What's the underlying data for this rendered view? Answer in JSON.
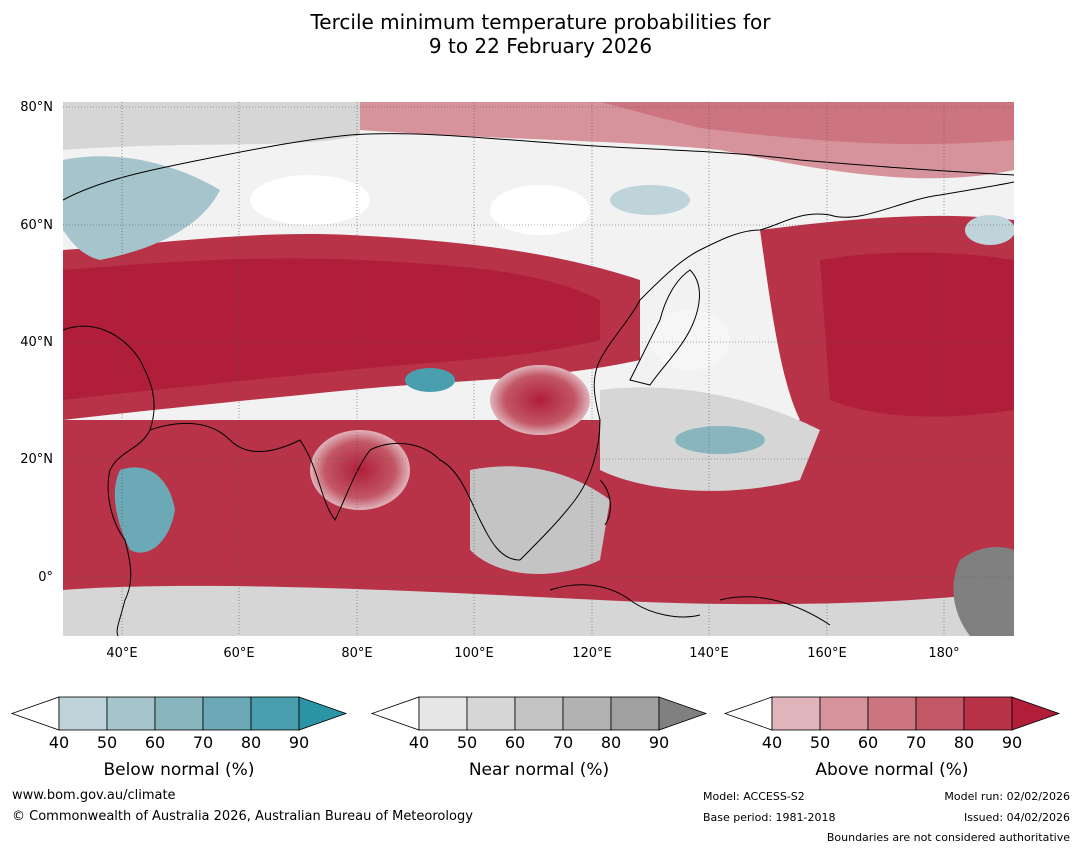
{
  "title": {
    "line1": "Tercile minimum temperature probabilities for",
    "line2": "9 to 22 February 2026"
  },
  "map": {
    "lat_labels": [
      "80°N",
      "60°N",
      "40°N",
      "20°N",
      "0°"
    ],
    "lon_labels": [
      "40°E",
      "60°E",
      "80°E",
      "100°E",
      "120°E",
      "140°E",
      "160°E",
      "180°"
    ],
    "extent": {
      "lon": [
        30,
        192
      ],
      "lat": [
        -10,
        81
      ]
    }
  },
  "legends": [
    {
      "id": "below",
      "title": "Below normal (%)",
      "ticks": [
        "40",
        "50",
        "60",
        "70",
        "80",
        "90"
      ],
      "colors": [
        "#ffffff",
        "#bfd3da",
        "#a5c4cb",
        "#89b6be",
        "#6aa9b5",
        "#4a9fae",
        "#2b94a6"
      ]
    },
    {
      "id": "near",
      "title": "Near normal (%)",
      "ticks": [
        "40",
        "50",
        "60",
        "70",
        "80",
        "90"
      ],
      "colors": [
        "#ffffff",
        "#e6e6e6",
        "#d6d6d6",
        "#c4c4c4",
        "#b2b2b2",
        "#a0a0a0",
        "#808080"
      ]
    },
    {
      "id": "above",
      "title": "Above normal (%)",
      "ticks": [
        "40",
        "50",
        "60",
        "70",
        "80",
        "90"
      ],
      "colors": [
        "#ffffff",
        "#e0b4bb",
        "#d6939c",
        "#cc7580",
        "#c25766",
        "#b83248",
        "#b01e3a"
      ]
    }
  ],
  "footer": {
    "url": "www.bom.gov.au/climate",
    "copyright": "© Commonwealth of Australia 2026, Australian Bureau of Meteorology",
    "model": "Model: ACCESS-S2",
    "base_period": "Base period: 1981-2018",
    "model_run": "Model run: 02/02/2026",
    "issued": "Issued: 04/02/2026",
    "disclaimer": "Boundaries are not considered authoritative"
  }
}
